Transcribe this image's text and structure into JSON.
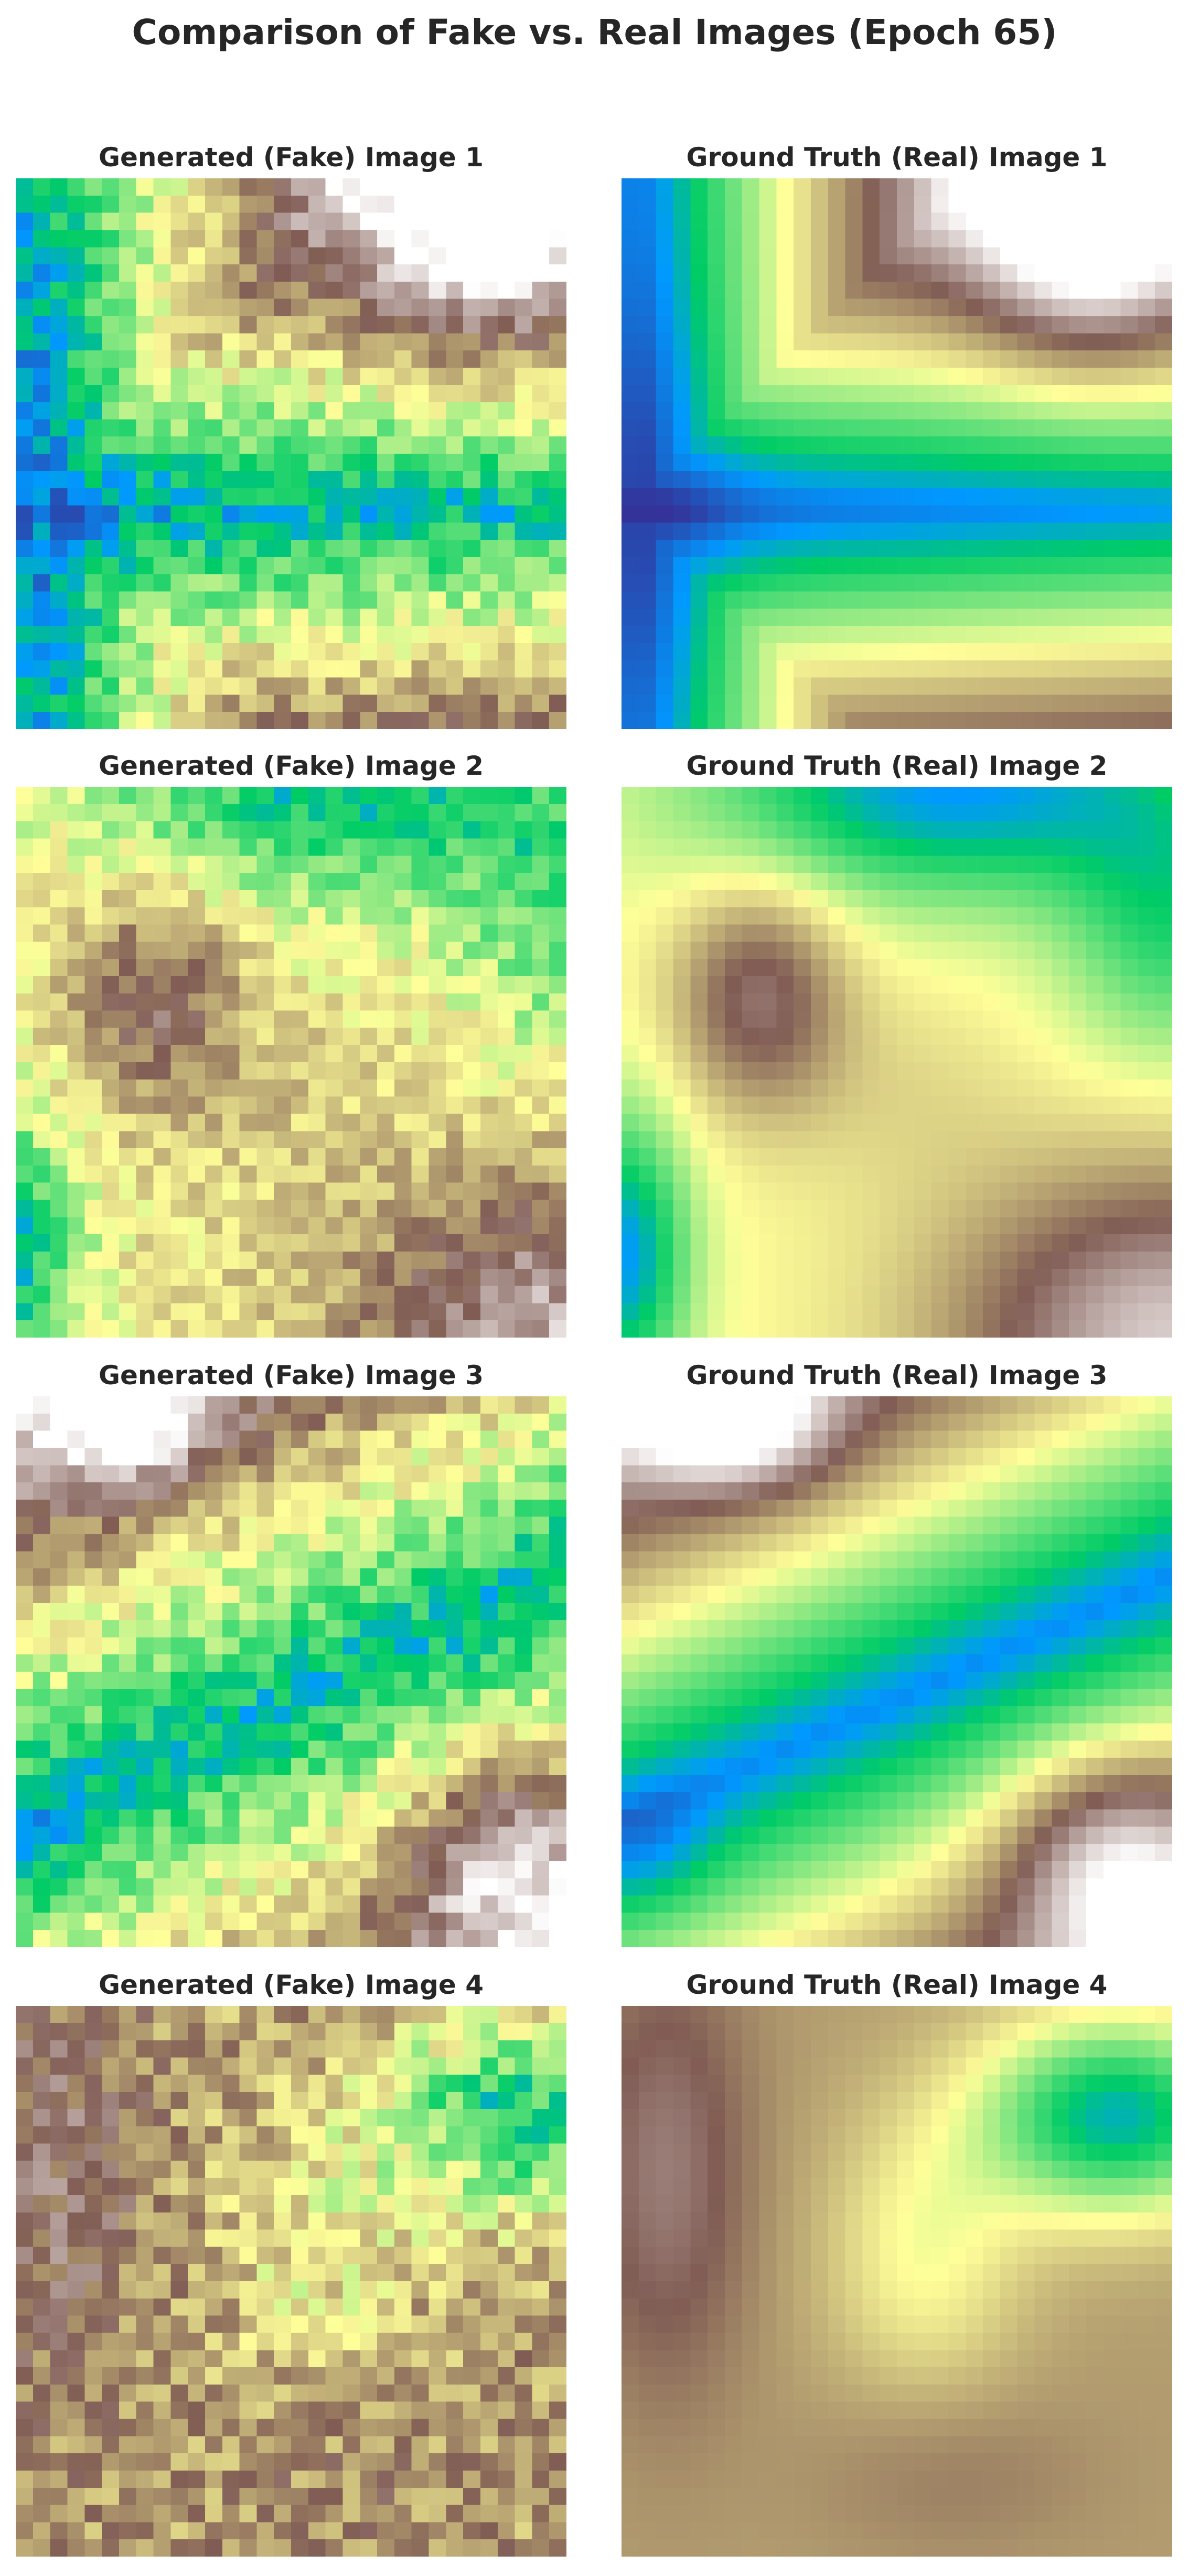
{
  "title": "Comparison of Fake vs. Real Images (Epoch 65)",
  "chart_data": [
    {
      "type": "heatmap",
      "title": "Generated (Fake) Image 1",
      "colormap": "terrain",
      "axes": "off",
      "grid": "32x32 pixels"
    },
    {
      "type": "heatmap",
      "title": "Ground Truth (Real) Image 1",
      "colormap": "terrain",
      "axes": "off",
      "grid": "32x32 pixels"
    },
    {
      "type": "heatmap",
      "title": "Generated (Fake) Image 2",
      "colormap": "terrain",
      "axes": "off",
      "grid": "32x32 pixels"
    },
    {
      "type": "heatmap",
      "title": "Ground Truth (Real) Image 2",
      "colormap": "terrain",
      "axes": "off",
      "grid": "32x32 pixels"
    },
    {
      "type": "heatmap",
      "title": "Generated (Fake) Image 3",
      "colormap": "terrain",
      "axes": "off",
      "grid": "32x32 pixels"
    },
    {
      "type": "heatmap",
      "title": "Ground Truth (Real) Image 3",
      "colormap": "terrain",
      "axes": "off",
      "grid": "32x32 pixels"
    },
    {
      "type": "heatmap",
      "title": "Generated (Fake) Image 4",
      "colormap": "terrain",
      "axes": "off",
      "grid": "32x32 pixels"
    },
    {
      "type": "heatmap",
      "title": "Ground Truth (Real) Image 4",
      "colormap": "terrain",
      "axes": "off",
      "grid": "32x32 pixels"
    }
  ]
}
